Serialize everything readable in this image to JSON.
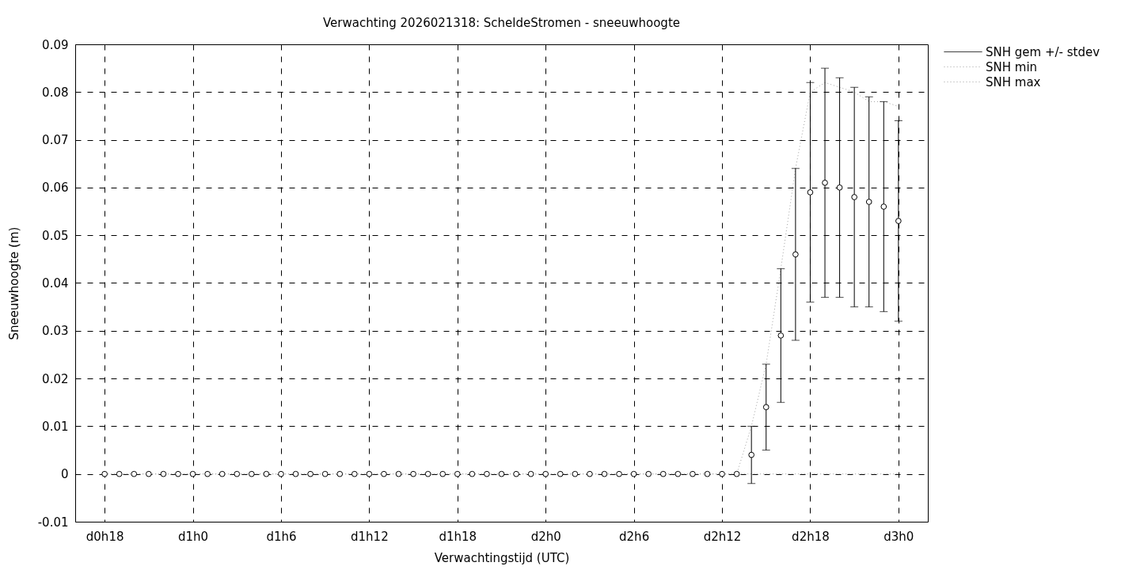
{
  "chart_data": {
    "type": "scatter",
    "title": "Verwachting 2026021318: ScheldeStromen - sneeuwhoogte",
    "xlabel": "Verwachtingstijd (UTC)",
    "ylabel": "Sneeuwhoogte (m)",
    "categories": [
      "d0h18",
      null,
      null,
      null,
      null,
      null,
      "d1h0",
      null,
      null,
      null,
      null,
      null,
      "d1h6",
      null,
      null,
      null,
      null,
      null,
      "d1h12",
      null,
      null,
      null,
      null,
      null,
      "d1h18",
      null,
      null,
      null,
      null,
      null,
      "d2h0",
      null,
      null,
      null,
      null,
      null,
      "d2h6",
      null,
      null,
      null,
      null,
      null,
      "d2h12",
      null,
      null,
      null,
      null,
      null,
      "d2h18",
      null,
      null,
      null,
      null,
      null,
      "d3h0"
    ],
    "ylim": [
      -0.01,
      0.09
    ],
    "yticks": [
      -0.01,
      0,
      0.01,
      0.02,
      0.03,
      0.04,
      0.05,
      0.06,
      0.07,
      0.08,
      0.09
    ],
    "grid": true,
    "legend": "top right",
    "series": [
      {
        "name": "SNH gem +/- stdev",
        "color": "#000000",
        "marker": "circle",
        "values": [
          0,
          0,
          0,
          0,
          0,
          0,
          0,
          0,
          0,
          0,
          0,
          0,
          0,
          0,
          0,
          0,
          0,
          0,
          0,
          0,
          0,
          0,
          0,
          0,
          0,
          0,
          0,
          0,
          0,
          0,
          0,
          0,
          0,
          0,
          0,
          0,
          0,
          0,
          0,
          0,
          0,
          0,
          0,
          0,
          0.004,
          0.014,
          0.029,
          0.046,
          0.059,
          0.061,
          0.06,
          0.058,
          0.057,
          0.056,
          0.053
        ],
        "errors": [
          null,
          null,
          null,
          null,
          null,
          null,
          null,
          null,
          null,
          null,
          null,
          null,
          null,
          null,
          null,
          null,
          null,
          null,
          null,
          null,
          null,
          null,
          null,
          null,
          null,
          null,
          null,
          null,
          null,
          null,
          null,
          null,
          null,
          null,
          null,
          null,
          null,
          null,
          null,
          null,
          null,
          null,
          null,
          null,
          0.006,
          0.009,
          0.014,
          0.018,
          0.023,
          0.024,
          0.023,
          0.023,
          0.022,
          0.022,
          0.021
        ]
      },
      {
        "name": "SNH min",
        "type": "line",
        "color": "#a0a0a0",
        "line_style": "dotted",
        "marker": "none",
        "values": [
          0,
          0,
          0,
          0,
          0,
          0,
          0,
          0,
          0,
          0,
          0,
          0,
          0,
          0,
          0,
          0,
          0,
          0,
          0,
          0,
          0,
          0,
          0,
          0,
          0,
          0,
          0,
          0,
          0,
          0,
          0,
          0,
          0,
          0,
          0,
          0,
          0,
          0,
          0,
          0,
          0,
          0,
          0,
          0,
          0,
          0,
          0,
          0,
          0,
          0,
          0,
          0,
          0,
          0,
          0
        ]
      },
      {
        "name": "SNH max",
        "type": "line",
        "color": "#a0a0a0",
        "line_style": "dotted",
        "marker": "none",
        "values": [
          0,
          0,
          0,
          0,
          0,
          0,
          0,
          0,
          0,
          0,
          0,
          0,
          0,
          0,
          0,
          0,
          0,
          0,
          0,
          0,
          0,
          0,
          0,
          0,
          0,
          0,
          0,
          0,
          0,
          0,
          0,
          0,
          0,
          0,
          0,
          0,
          0,
          0,
          0,
          0,
          0,
          0,
          0,
          0,
          0.01,
          0.023,
          0.043,
          0.064,
          0.08,
          0.082,
          0.081,
          0.08,
          0.078,
          0.078,
          0.077
        ]
      }
    ]
  }
}
